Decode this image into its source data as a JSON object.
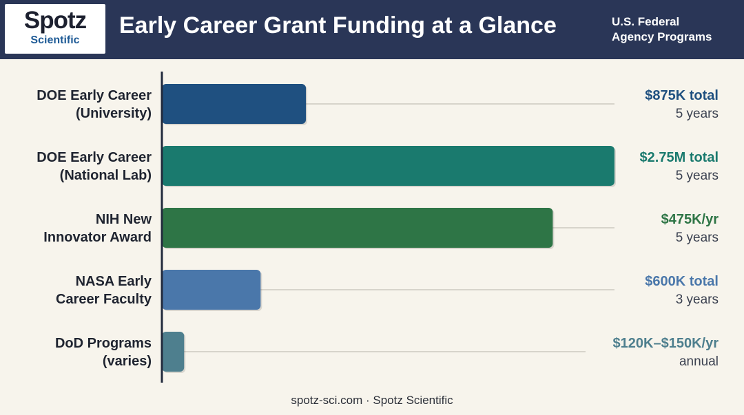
{
  "header": {
    "logo_word": "Spotz",
    "logo_sub": "Scientific",
    "title": "Early Career Grant Funding at a Glance",
    "subtitle_lines": [
      "U.S. Federal",
      "Agency Programs"
    ]
  },
  "chart_data": {
    "type": "bar",
    "orientation": "horizontal",
    "title": "Early Career Grant Funding at a Glance",
    "xlabel": "",
    "ylabel": "",
    "grid": false,
    "categories": [
      [
        "DOE Early Career",
        "(University)"
      ],
      [
        "DOE Early Career",
        "(National Lab)"
      ],
      [
        "NIH New",
        "Innovator Award"
      ],
      [
        "NASA Early",
        "Career Faculty"
      ],
      [
        "DoD Programs",
        "(varies)"
      ]
    ],
    "values": [
      875,
      2750,
      2375,
      600,
      135
    ],
    "value_unit": "thousand USD (total award)",
    "xlim": [
      0,
      2750
    ],
    "amount_labels": [
      "$875K total",
      "$2.75M total",
      "$475K/yr",
      "$600K total",
      "$120K–$150K/yr"
    ],
    "duration_labels": [
      "5 years",
      "5 years",
      "5 years",
      "3 years",
      "annual"
    ],
    "colors": [
      "#1f5080",
      "#1a7a6e",
      "#2e7546",
      "#4a77aa",
      "#4e7f8e"
    ]
  },
  "footer": {
    "text": "spotz-sci.com · Spotz Scientific"
  }
}
